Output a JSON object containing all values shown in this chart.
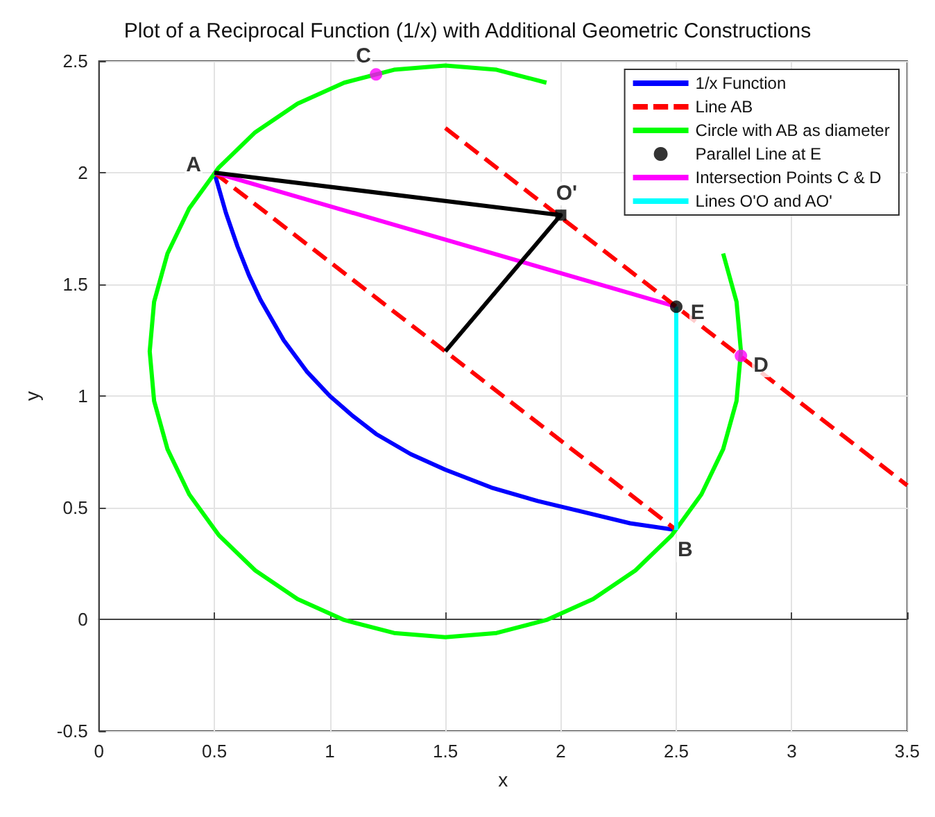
{
  "chart_data": {
    "type": "line",
    "title": "Plot of a Reciprocal Function (1/x) with Additional Geometric Constructions",
    "xlabel": "x",
    "ylabel": "y",
    "xlim": [
      0,
      3.5
    ],
    "ylim": [
      -0.5,
      2.5
    ],
    "xticks": [
      0,
      0.5,
      1,
      1.5,
      2,
      2.5,
      3,
      3.5
    ],
    "yticks": [
      -0.5,
      0,
      0.5,
      1,
      1.5,
      2,
      2.5
    ],
    "grid": true,
    "legend": "top right",
    "series": [
      {
        "name": "1/x Function",
        "color": "#0000ff",
        "line_style": "solid",
        "marker": "none",
        "x": [
          0.5,
          0.55,
          0.6,
          0.65,
          0.7,
          0.8,
          0.9,
          1,
          1.1,
          1.2,
          1.35,
          1.5,
          1.7,
          1.9,
          2.1,
          2.3,
          2.5
        ],
        "values": [
          2,
          1.82,
          1.67,
          1.54,
          1.43,
          1.25,
          1.11,
          1,
          0.91,
          0.83,
          0.74,
          0.67,
          0.59,
          0.53,
          0.48,
          0.43,
          0.4
        ]
      },
      {
        "name": "Line AB",
        "color": "#ff0000",
        "line_style": "dashed",
        "marker": "none",
        "x": [
          0.5,
          2.5
        ],
        "values": [
          2,
          0.4
        ]
      },
      {
        "name": "Circle with AB as diameter",
        "color": "#00ff00",
        "line_style": "solid",
        "marker": "none",
        "x": [
          2.78,
          2.761,
          2.703,
          2.609,
          2.481,
          2.323,
          2.14,
          1.938,
          1.722,
          1.5,
          1.278,
          1.062,
          0.86,
          0.677,
          0.519,
          0.391,
          0.297,
          0.239,
          0.22,
          0.239,
          0.297,
          0.391,
          0.519,
          0.677,
          0.86,
          1.062,
          1.278,
          1.5,
          1.722,
          1.938,
          2.14,
          2.323,
          2.481,
          2.609,
          2.703,
          2.761,
          2.78
        ],
        "values": [
          1.2,
          1.422,
          1.638,
          null,
          null,
          null,
          null,
          2.403,
          2.461,
          2.48,
          2.461,
          2.403,
          2.309,
          2.181,
          2.023,
          1.84,
          1.638,
          1.422,
          1.2,
          0.978,
          0.762,
          0.56,
          0.377,
          0.219,
          0.091,
          -0.003,
          -0.061,
          -0.08,
          -0.061,
          -0.003,
          0.091,
          0.219,
          0.377,
          0.56,
          0.762,
          0.978,
          1.2
        ]
      },
      {
        "name": "Parallel Line at E",
        "type": "scatter",
        "color": "#000000",
        "marker": "circle",
        "x": [
          2.5
        ],
        "values": [
          1.4
        ]
      },
      {
        "name": "Intersection Points C & D",
        "color": "#ff00ff",
        "line_style": "solid",
        "marker": "none",
        "x": [
          0.5,
          2.5
        ],
        "values": [
          2,
          1.4
        ]
      },
      {
        "name": "Lines O'O and AO'",
        "color": "#00ffff",
        "line_style": "solid",
        "marker": "none",
        "x": [
          2.5,
          2.5
        ],
        "values": [
          1.4,
          0.4
        ]
      },
      {
        "color": "#ff0000",
        "line_style": "dashed",
        "marker": "none",
        "x": [
          1.5,
          3.5
        ],
        "values": [
          2.2,
          0.6
        ]
      },
      {
        "type": "scatter",
        "color": "#ff00ff",
        "marker": "circle",
        "x": [
          1.2,
          2.78
        ],
        "values": [
          2.44,
          1.18
        ]
      },
      {
        "color": "#000000",
        "line_style": "solid",
        "marker": "none",
        "x": [
          0.5,
          2,
          1.5
        ],
        "values": [
          2,
          1.81,
          1.2
        ]
      },
      {
        "type": "scatter",
        "color": "#000000",
        "marker": "square",
        "x": [
          2
        ],
        "values": [
          1.81
        ]
      }
    ],
    "annotations": [
      {
        "text": "A",
        "x": 0.5,
        "y": 2
      },
      {
        "text": "B",
        "x": 2.5,
        "y": 0.4
      },
      {
        "text": "C",
        "x": 1.2,
        "y": 2.44
      },
      {
        "text": "D",
        "x": 2.78,
        "y": 1.18
      },
      {
        "text": "E",
        "x": 2.5,
        "y": 1.4
      },
      {
        "text": "O'",
        "x": 2,
        "y": 1.81
      }
    ]
  }
}
